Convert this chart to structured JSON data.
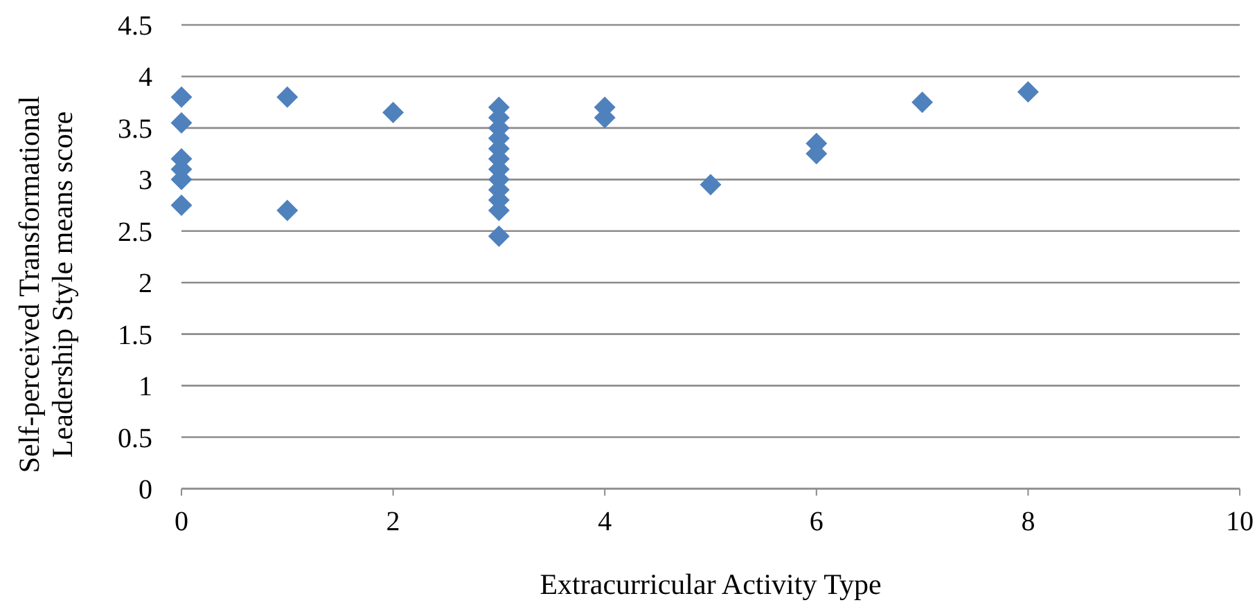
{
  "chart_data": {
    "type": "scatter",
    "xlabel": "Extracurricular Activity Type",
    "ylabel": "Self-perceived Transformational Leadership Style means score",
    "x": [
      0,
      0,
      0,
      0,
      0,
      0,
      1,
      1,
      2,
      3,
      3,
      3,
      3,
      3,
      3,
      3,
      3,
      3,
      3,
      3,
      3,
      4,
      4,
      5,
      6,
      6,
      7,
      8
    ],
    "series": [
      {
        "color": "#4f81bd",
        "values": [
          3.8,
          3.55,
          3.2,
          3.1,
          3.0,
          2.75,
          3.8,
          2.7,
          3.65,
          3.7,
          3.6,
          3.5,
          3.4,
          3.3,
          3.2,
          3.1,
          3.0,
          2.9,
          2.8,
          2.7,
          2.45,
          3.7,
          3.6,
          2.95,
          3.35,
          3.25,
          3.75,
          3.85
        ]
      }
    ],
    "xlim": [
      0,
      10
    ],
    "xticks": [
      0,
      2,
      4,
      6,
      8,
      10
    ],
    "ylim": [
      0,
      4.5
    ],
    "yticks": [
      0,
      0.5,
      1,
      1.5,
      2,
      2.5,
      3,
      3.5,
      4,
      4.5
    ],
    "grid": "y",
    "marker": "diamond"
  }
}
